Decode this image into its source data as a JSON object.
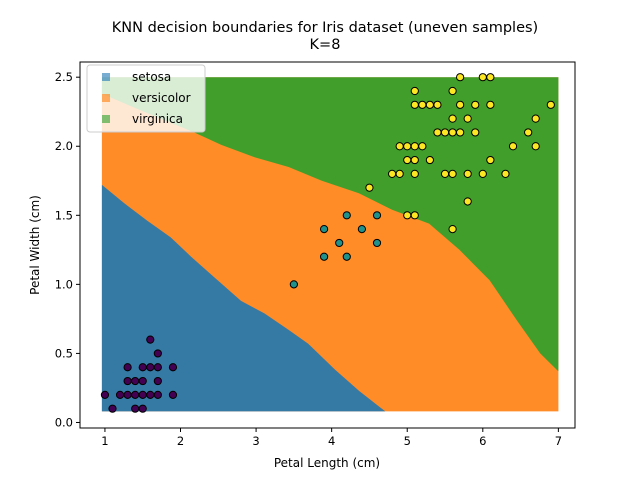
{
  "chart_data": {
    "type": "scatter",
    "title": "KNN decision boundaries for Iris dataset (uneven samples)",
    "subtitle": "K=8",
    "xlabel": "Petal Length (cm)",
    "ylabel": "Petal Width (cm)",
    "xlim": [
      0.67,
      7.22
    ],
    "ylim": [
      -0.04,
      2.61
    ],
    "xticks": [
      1,
      2,
      3,
      4,
      5,
      6,
      7
    ],
    "xtick_labels": [
      "1",
      "2",
      "3",
      "4",
      "5",
      "6",
      "7"
    ],
    "yticks": [
      0.0,
      0.5,
      1.0,
      1.5,
      2.0,
      2.5
    ],
    "ytick_labels": [
      "0.0",
      "0.5",
      "1.0",
      "1.5",
      "2.0",
      "2.5"
    ],
    "grid": false,
    "legend": {
      "placement": "upper-left",
      "entries": [
        "setosa",
        "versicolor",
        "virginica"
      ]
    },
    "region_colors": {
      "setosa": "#1f77b4",
      "versicolor": "#ff7f0e",
      "virginica": "#2ca02c"
    },
    "mesh_extent": {
      "x": [
        0.96,
        7.0
      ],
      "y": [
        0.08,
        2.5
      ]
    },
    "decision_boundaries": {
      "setosa_versicolor": [
        [
          0.96,
          1.72
        ],
        [
          1.25,
          1.59
        ],
        [
          1.56,
          1.46
        ],
        [
          1.87,
          1.34
        ],
        [
          2.14,
          1.2
        ],
        [
          2.45,
          1.05
        ],
        [
          2.8,
          0.88
        ],
        [
          3.11,
          0.79
        ],
        [
          3.43,
          0.67
        ],
        [
          3.69,
          0.57
        ],
        [
          4.05,
          0.38
        ],
        [
          4.36,
          0.23
        ],
        [
          4.71,
          0.08
        ]
      ],
      "versicolor_virginica": [
        [
          0.96,
          2.38
        ],
        [
          1.56,
          2.24
        ],
        [
          2.18,
          2.1
        ],
        [
          2.54,
          2.01
        ],
        [
          2.98,
          1.92
        ],
        [
          3.43,
          1.85
        ],
        [
          3.87,
          1.75
        ],
        [
          4.36,
          1.66
        ],
        [
          4.8,
          1.54
        ],
        [
          5.29,
          1.44
        ],
        [
          5.69,
          1.25
        ],
        [
          6.09,
          1.03
        ],
        [
          6.45,
          0.74
        ],
        [
          6.76,
          0.5
        ],
        [
          7.0,
          0.37
        ]
      ]
    },
    "series": [
      {
        "class": "setosa",
        "color": "#440154",
        "points": [
          [
            1.6,
            0.6
          ],
          [
            1.7,
            0.5
          ],
          [
            1.3,
            0.4
          ],
          [
            1.5,
            0.4
          ],
          [
            1.6,
            0.4
          ],
          [
            1.7,
            0.4
          ],
          [
            1.9,
            0.4
          ],
          [
            1.3,
            0.3
          ],
          [
            1.4,
            0.3
          ],
          [
            1.5,
            0.3
          ],
          [
            1.7,
            0.3
          ],
          [
            1.0,
            0.2
          ],
          [
            1.2,
            0.2
          ],
          [
            1.3,
            0.2
          ],
          [
            1.4,
            0.2
          ],
          [
            1.5,
            0.2
          ],
          [
            1.6,
            0.2
          ],
          [
            1.7,
            0.2
          ],
          [
            1.9,
            0.2
          ],
          [
            1.1,
            0.1
          ],
          [
            1.4,
            0.1
          ],
          [
            1.5,
            0.1
          ]
        ]
      },
      {
        "class": "versicolor",
        "color": "#21918c",
        "points": [
          [
            4.2,
            1.5
          ],
          [
            4.6,
            1.5
          ],
          [
            3.9,
            1.4
          ],
          [
            4.4,
            1.4
          ],
          [
            4.1,
            1.3
          ],
          [
            4.6,
            1.3
          ],
          [
            3.9,
            1.2
          ],
          [
            4.2,
            1.2
          ],
          [
            3.5,
            1.0
          ]
        ]
      },
      {
        "class": "virginica",
        "color": "#fde725",
        "points": [
          [
            5.7,
            2.5
          ],
          [
            6.0,
            2.5
          ],
          [
            6.1,
            2.5
          ],
          [
            5.1,
            2.4
          ],
          [
            5.6,
            2.4
          ],
          [
            5.1,
            2.3
          ],
          [
            5.2,
            2.3
          ],
          [
            5.3,
            2.3
          ],
          [
            5.4,
            2.3
          ],
          [
            5.7,
            2.3
          ],
          [
            5.9,
            2.3
          ],
          [
            6.1,
            2.3
          ],
          [
            6.9,
            2.3
          ],
          [
            5.6,
            2.2
          ],
          [
            5.8,
            2.2
          ],
          [
            6.7,
            2.2
          ],
          [
            5.4,
            2.1
          ],
          [
            5.5,
            2.1
          ],
          [
            5.6,
            2.1
          ],
          [
            5.7,
            2.1
          ],
          [
            5.9,
            2.1
          ],
          [
            6.6,
            2.1
          ],
          [
            4.9,
            2.0
          ],
          [
            5.0,
            2.0
          ],
          [
            5.1,
            2.0
          ],
          [
            5.2,
            2.0
          ],
          [
            6.4,
            2.0
          ],
          [
            6.7,
            2.0
          ],
          [
            5.0,
            1.9
          ],
          [
            5.1,
            1.9
          ],
          [
            5.3,
            1.9
          ],
          [
            6.1,
            1.9
          ],
          [
            4.8,
            1.8
          ],
          [
            4.9,
            1.8
          ],
          [
            5.1,
            1.8
          ],
          [
            5.5,
            1.8
          ],
          [
            5.6,
            1.8
          ],
          [
            5.8,
            1.8
          ],
          [
            6.0,
            1.8
          ],
          [
            6.3,
            1.8
          ],
          [
            4.5,
            1.7
          ],
          [
            5.8,
            1.6
          ],
          [
            5.0,
            1.5
          ],
          [
            5.1,
            1.5
          ],
          [
            5.6,
            1.4
          ]
        ]
      }
    ]
  }
}
